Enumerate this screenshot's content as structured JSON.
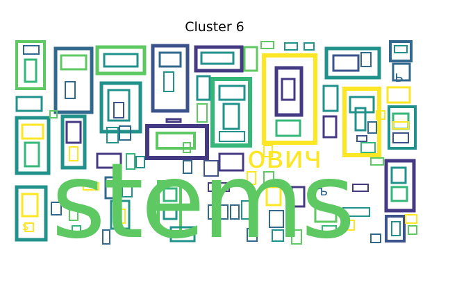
{
  "figure": {
    "title": "Cluster 6",
    "words": [
      {
        "text": "stems",
        "color": "#5ec962"
      },
      {
        "text": "ович",
        "color": "#fde725"
      },
      {
        "text": "ъ",
        "color": "#31688e"
      },
      {
        "text": "s",
        "color": "#fde725"
      },
      {
        "text": "ь",
        "color": "#31688e"
      }
    ]
  },
  "palette": {
    "yellow": "#fde725",
    "lightgreen": "#5ec962",
    "green": "#35b779",
    "teal": "#21918c",
    "blue": "#31688e",
    "purple": "#3b528b",
    "indigo": "#443983"
  }
}
